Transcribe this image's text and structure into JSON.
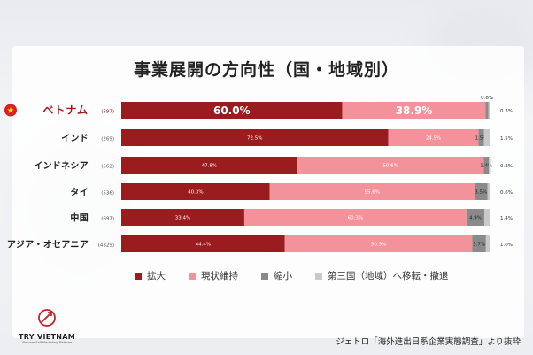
{
  "title": "事業展開の方向性（国・地域別）",
  "source": "ジェトロ「海外進出日系企業実態調査」より抜粋",
  "logo": {
    "name": "TRY VIETNAM",
    "tagline": "Vietnam Self Marketing Platform"
  },
  "colors": {
    "expand": "#9b1c1f",
    "maintain": "#f4929b",
    "shrink": "#8a8a8a",
    "relocate": "#c9c9c9"
  },
  "chart_data": {
    "type": "bar",
    "orientation": "horizontal",
    "stacked": true,
    "categories": [
      {
        "name": "ベトナム",
        "n": "(597)",
        "highlight": true
      },
      {
        "name": "インド",
        "n": "(269)"
      },
      {
        "name": "インドネシア",
        "n": "(562)"
      },
      {
        "name": "タイ",
        "n": "(536)"
      },
      {
        "name": "中国",
        "n": "(697)"
      },
      {
        "name": "アジア・オセアニア",
        "n": "(4329)"
      }
    ],
    "series": [
      {
        "name": "拡大",
        "values": [
          60.0,
          72.5,
          47.8,
          40.3,
          33.4,
          44.4
        ],
        "labels": [
          "60.0%",
          "72.5%",
          "47.8%",
          "40.3%",
          "33.4%",
          "44.4%"
        ]
      },
      {
        "name": "現状維持",
        "values": [
          38.9,
          24.5,
          50.6,
          55.6,
          60.3,
          50.9
        ],
        "labels": [
          "38.9%",
          "24.5%",
          "50.6%",
          "55.6%",
          "60.3%",
          "50.9%"
        ]
      },
      {
        "name": "縮小",
        "values": [
          0.8,
          1.5,
          1.4,
          3.5,
          4.9,
          3.7
        ],
        "labels": [
          "0.8%",
          "1.5%",
          "1.4%",
          "3.5%",
          "4.9%",
          "3.7%"
        ]
      },
      {
        "name": "第三国（地域）へ移転・撤退",
        "values": [
          0.3,
          1.5,
          0.3,
          0.6,
          1.4,
          1.0
        ],
        "labels": [
          "0.3%",
          "1.5%",
          "0.3%",
          "0.6%",
          "1.4%",
          "1.0%"
        ]
      }
    ],
    "xlim": [
      0,
      100
    ]
  }
}
